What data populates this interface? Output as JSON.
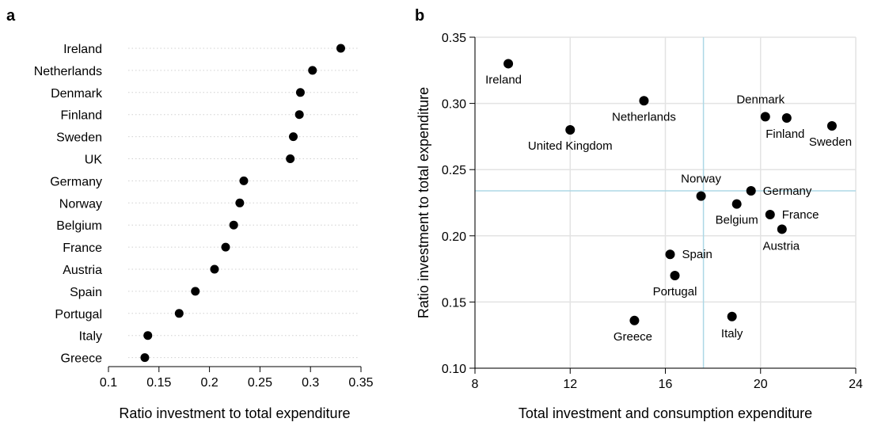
{
  "chart_data": [
    {
      "panel": "a",
      "type": "scatter",
      "subtype": "dot-plot",
      "xlabel": "Ratio investment to total expenditure",
      "ylabel": "",
      "xlim": [
        0.1,
        0.35
      ],
      "xticks": [
        "0.1",
        "0.15",
        "0.2",
        "0.25",
        "0.3",
        "0.35"
      ],
      "grid": "dotted horizontal guide lines",
      "categories": [
        "Ireland",
        "Netherlands",
        "Denmark",
        "Finland",
        "Sweden",
        "UK",
        "Germany",
        "Norway",
        "Belgium",
        "France",
        "Austria",
        "Spain",
        "Portugal",
        "Italy",
        "Greece"
      ],
      "values": [
        0.33,
        0.302,
        0.29,
        0.289,
        0.283,
        0.28,
        0.234,
        0.23,
        0.224,
        0.216,
        0.205,
        0.186,
        0.17,
        0.139,
        0.136
      ]
    },
    {
      "panel": "b",
      "type": "scatter",
      "xlabel": "Total investment and consumption expenditure",
      "ylabel": "Ratio investment to total expenditure",
      "xlim": [
        8,
        24
      ],
      "ylim": [
        0.1,
        0.35
      ],
      "xticks": [
        "8",
        "12",
        "16",
        "20",
        "24"
      ],
      "yticks": [
        "0.10",
        "0.15",
        "0.20",
        "0.25",
        "0.30",
        "0.35"
      ],
      "grid": true,
      "reference_lines": {
        "x": 17.6,
        "y": 0.234,
        "color": "#add8e6"
      },
      "points": [
        {
          "label": "Ireland",
          "x": 9.4,
          "y": 0.33
        },
        {
          "label": "Netherlands",
          "x": 15.1,
          "y": 0.302
        },
        {
          "label": "United Kingdom",
          "x": 12.0,
          "y": 0.28
        },
        {
          "label": "Denmark",
          "x": 20.2,
          "y": 0.29
        },
        {
          "label": "Finland",
          "x": 21.1,
          "y": 0.289
        },
        {
          "label": "Sweden",
          "x": 23.0,
          "y": 0.283
        },
        {
          "label": "Norway",
          "x": 17.5,
          "y": 0.23
        },
        {
          "label": "Germany",
          "x": 19.6,
          "y": 0.234
        },
        {
          "label": "Belgium",
          "x": 19.0,
          "y": 0.224
        },
        {
          "label": "France",
          "x": 20.4,
          "y": 0.216
        },
        {
          "label": "Austria",
          "x": 20.9,
          "y": 0.205
        },
        {
          "label": "Spain",
          "x": 16.2,
          "y": 0.186
        },
        {
          "label": "Portugal",
          "x": 16.4,
          "y": 0.17
        },
        {
          "label": "Greece",
          "x": 14.7,
          "y": 0.136
        },
        {
          "label": "Italy",
          "x": 18.8,
          "y": 0.139
        }
      ]
    }
  ],
  "panel_letters": {
    "a": "a",
    "b": "b"
  }
}
